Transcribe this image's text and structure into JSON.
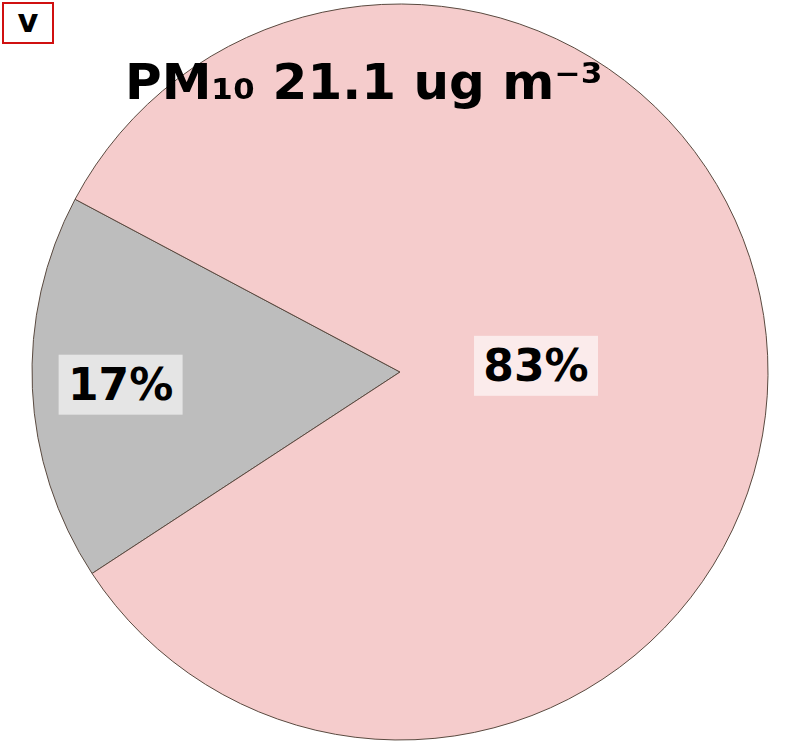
{
  "chart_data": {
    "type": "pie",
    "title": "PM₁₀ 21.1 ug m⁻³",
    "annotations": [
      "v"
    ],
    "categories": [
      null,
      null
    ],
    "values": [
      17,
      83
    ],
    "value_labels": [
      "17%",
      "83%"
    ],
    "colors": [
      "#bdbdbd",
      "#f5cccc"
    ],
    "data_labels": true
  }
}
